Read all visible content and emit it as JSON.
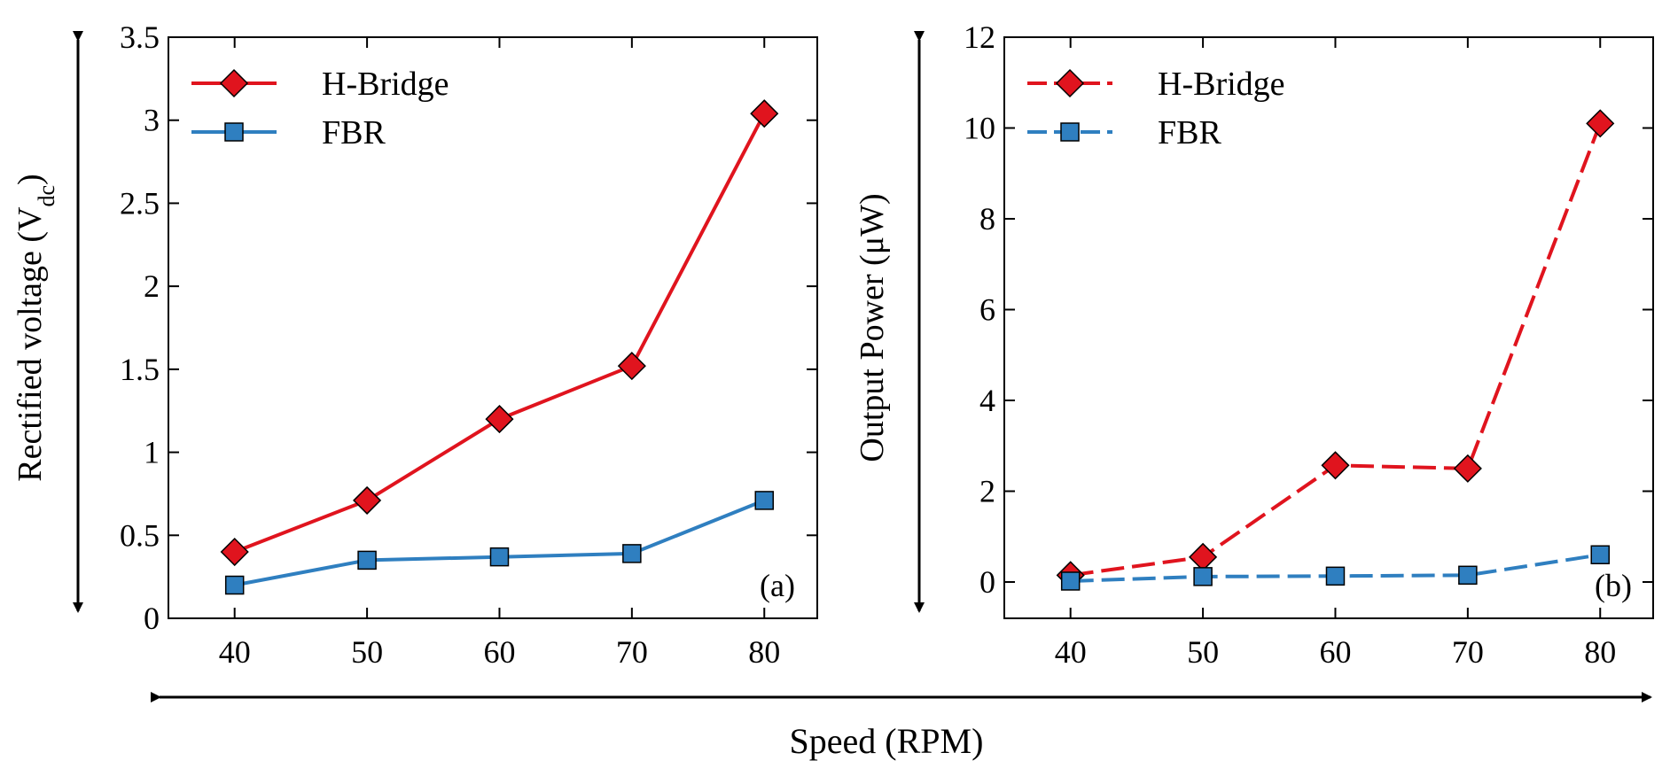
{
  "colors": {
    "hbridge": "#e0141e",
    "fbr": "#2f7fc0",
    "axis": "#000000"
  },
  "shared_xlabel": "Speed (RPM)",
  "chart_data": [
    {
      "type": "line",
      "panel_label": "(a)",
      "xlabel": "",
      "ylabel_main": "Rectified voltage (V",
      "ylabel_sub": "dc",
      "ylabel_close": ")",
      "xlim": [
        35,
        84
      ],
      "ylim": [
        0,
        3.5
      ],
      "xticks": [
        40,
        50,
        60,
        70,
        80
      ],
      "yticks": [
        0,
        0.5,
        1,
        1.5,
        2,
        2.5,
        3,
        3.5
      ],
      "ytick_labels": [
        "0",
        "0.5",
        "1",
        "1.5",
        "2",
        "2.5",
        "3",
        "3.5"
      ],
      "x": [
        40,
        50,
        60,
        70,
        80
      ],
      "legend_position": "top-left",
      "series": [
        {
          "name": "H-Bridge",
          "marker": "diamond",
          "style": "solid",
          "values": [
            0.4,
            0.71,
            1.2,
            1.52,
            3.04
          ]
        },
        {
          "name": "FBR",
          "marker": "square",
          "style": "solid",
          "values": [
            0.2,
            0.35,
            0.37,
            0.39,
            0.71
          ]
        }
      ]
    },
    {
      "type": "line",
      "panel_label": "(b)",
      "xlabel": "",
      "ylabel_main": "Output Power (μW)",
      "ylabel_sub": "",
      "ylabel_close": "",
      "xlim": [
        35,
        84
      ],
      "ylim": [
        -0.8,
        12
      ],
      "xticks": [
        40,
        50,
        60,
        70,
        80
      ],
      "yticks": [
        0,
        2,
        4,
        6,
        8,
        10,
        12
      ],
      "ytick_labels": [
        "0",
        "2",
        "4",
        "6",
        "8",
        "10",
        "12"
      ],
      "x": [
        40,
        50,
        60,
        70,
        80
      ],
      "legend_position": "top-left",
      "series": [
        {
          "name": "H-Bridge",
          "marker": "diamond",
          "style": "dashed",
          "values": [
            0.15,
            0.55,
            2.57,
            2.5,
            10.1
          ]
        },
        {
          "name": "FBR",
          "marker": "square",
          "style": "dashed",
          "values": [
            0.02,
            0.12,
            0.13,
            0.15,
            0.6
          ]
        }
      ]
    }
  ]
}
